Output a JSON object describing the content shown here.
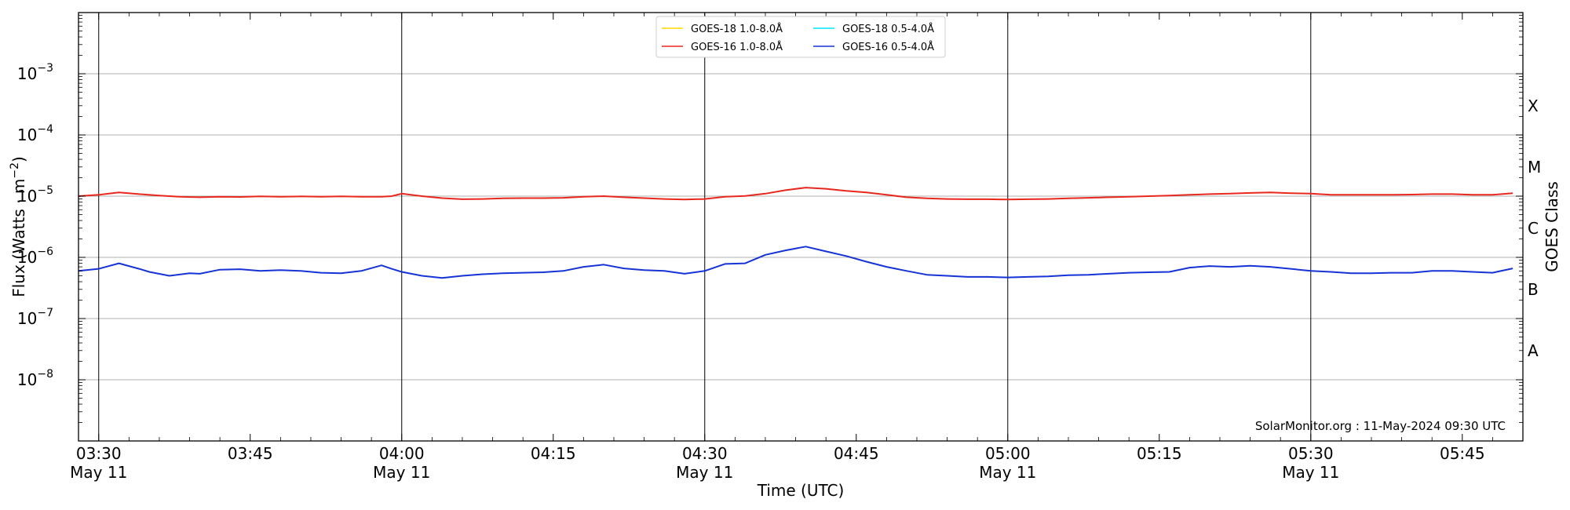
{
  "chart_data": {
    "type": "line",
    "xlabel": "Time (UTC)",
    "ylabel": "Flux (Watts · m",
    "ylabel_sup": "−2",
    "ylabel_close": ")",
    "y2label": "GOES Class",
    "ylog": true,
    "ylim": [
      1e-09,
      0.01
    ],
    "xlim": [
      "03:28",
      "05:51"
    ],
    "grid": "horizontal",
    "legend_position": "top-center",
    "y_ticks": [
      {
        "value": 1e-08,
        "base": "10",
        "exp": "−8"
      },
      {
        "value": 1e-07,
        "base": "10",
        "exp": "−7"
      },
      {
        "value": 1e-06,
        "base": "10",
        "exp": "−6"
      },
      {
        "value": 1e-05,
        "base": "10",
        "exp": "−5"
      },
      {
        "value": 0.0001,
        "base": "10",
        "exp": "−4"
      },
      {
        "value": 0.001,
        "base": "10",
        "exp": "−3"
      }
    ],
    "x_ticks": [
      {
        "time": "03:30",
        "label": "03:30",
        "date": "May 11",
        "vline": true
      },
      {
        "time": "03:45",
        "label": "03:45",
        "date": "",
        "vline": false
      },
      {
        "time": "04:00",
        "label": "04:00",
        "date": "May 11",
        "vline": true
      },
      {
        "time": "04:15",
        "label": "04:15",
        "date": "",
        "vline": false
      },
      {
        "time": "04:30",
        "label": "04:30",
        "date": "May 11",
        "vline": true
      },
      {
        "time": "04:45",
        "label": "04:45",
        "date": "",
        "vline": false
      },
      {
        "time": "05:00",
        "label": "05:00",
        "date": "May 11",
        "vline": true
      },
      {
        "time": "05:15",
        "label": "05:15",
        "date": "",
        "vline": false
      },
      {
        "time": "05:30",
        "label": "05:30",
        "date": "May 11",
        "vline": true
      },
      {
        "time": "05:45",
        "label": "05:45",
        "date": "",
        "vline": false
      }
    ],
    "goes_classes": [
      {
        "label": "A",
        "value": 3e-08
      },
      {
        "label": "B",
        "value": 3e-07
      },
      {
        "label": "C",
        "value": 3e-06
      },
      {
        "label": "M",
        "value": 3e-05
      },
      {
        "label": "X",
        "value": 0.0003
      }
    ],
    "series": [
      {
        "name": "GOES-18 1.0-8.0Å",
        "color": "#ffd700",
        "x": [],
        "y": []
      },
      {
        "name": "GOES-16 1.0-8.0Å",
        "color": "#e8281e",
        "x": [
          "03:28",
          "03:30",
          "03:32",
          "03:34",
          "03:36",
          "03:38",
          "03:40",
          "03:42",
          "03:44",
          "03:46",
          "03:48",
          "03:50",
          "03:52",
          "03:54",
          "03:56",
          "03:58",
          "03:59",
          "04:00",
          "04:02",
          "04:04",
          "04:06",
          "04:08",
          "04:10",
          "04:12",
          "04:14",
          "04:16",
          "04:18",
          "04:20",
          "04:22",
          "04:24",
          "04:26",
          "04:28",
          "04:30",
          "04:32",
          "04:34",
          "04:36",
          "04:38",
          "04:40",
          "04:42",
          "04:44",
          "04:46",
          "04:48",
          "04:50",
          "04:52",
          "04:54",
          "04:56",
          "04:58",
          "05:00",
          "05:02",
          "05:04",
          "05:06",
          "05:08",
          "05:10",
          "05:12",
          "05:14",
          "05:16",
          "05:18",
          "05:20",
          "05:22",
          "05:24",
          "05:26",
          "05:28",
          "05:30",
          "05:32",
          "05:34",
          "05:36",
          "05:38",
          "05:40",
          "05:42",
          "05:44",
          "05:46",
          "05:48",
          "05:50"
        ],
        "y": [
          1e-05,
          1.05e-05,
          1.15e-05,
          1.08e-05,
          1.02e-05,
          9.8e-06,
          9.6e-06,
          9.8e-06,
          9.7e-06,
          9.9e-06,
          9.8e-06,
          9.9e-06,
          9.8e-06,
          9.9e-06,
          9.8e-06,
          9.8e-06,
          1e-05,
          1.1e-05,
          1e-05,
          9.3e-06,
          8.9e-06,
          9e-06,
          9.2e-06,
          9.3e-06,
          9.3e-06,
          9.4e-06,
          9.8e-06,
          1e-05,
          9.6e-06,
          9.3e-06,
          9e-06,
          8.8e-06,
          9e-06,
          9.8e-06,
          1.01e-05,
          1.1e-05,
          1.25e-05,
          1.38e-05,
          1.32e-05,
          1.22e-05,
          1.15e-05,
          1.05e-05,
          9.6e-06,
          9.2e-06,
          9e-06,
          8.9e-06,
          8.9e-06,
          8.8e-06,
          8.9e-06,
          9e-06,
          9.2e-06,
          9.4e-06,
          9.6e-06,
          9.8e-06,
          1e-05,
          1.02e-05,
          1.05e-05,
          1.08e-05,
          1.1e-05,
          1.13e-05,
          1.15e-05,
          1.12e-05,
          1.1e-05,
          1.05e-05,
          1.05e-05,
          1.05e-05,
          1.05e-05,
          1.06e-05,
          1.08e-05,
          1.08e-05,
          1.05e-05,
          1.05e-05,
          1.12e-05
        ]
      },
      {
        "name": "GOES-18 0.5-4.0Å",
        "color": "#00e5ff",
        "x": [],
        "y": []
      },
      {
        "name": "GOES-16 0.5-4.0Å",
        "color": "#1633d6",
        "x": [
          "03:28",
          "03:30",
          "03:32",
          "03:34",
          "03:35",
          "03:37",
          "03:39",
          "03:40",
          "03:42",
          "03:44",
          "03:46",
          "03:48",
          "03:50",
          "03:52",
          "03:54",
          "03:56",
          "03:58",
          "03:59",
          "04:00",
          "04:02",
          "04:04",
          "04:06",
          "04:08",
          "04:10",
          "04:12",
          "04:14",
          "04:16",
          "04:18",
          "04:20",
          "04:22",
          "04:24",
          "04:26",
          "04:28",
          "04:30",
          "04:32",
          "04:34",
          "04:36",
          "04:38",
          "04:40",
          "04:42",
          "04:44",
          "04:46",
          "04:48",
          "04:50",
          "04:52",
          "04:54",
          "04:56",
          "04:58",
          "05:00",
          "05:02",
          "05:04",
          "05:06",
          "05:08",
          "05:10",
          "05:12",
          "05:14",
          "05:16",
          "05:18",
          "05:20",
          "05:22",
          "05:24",
          "05:26",
          "05:28",
          "05:30",
          "05:32",
          "05:34",
          "05:36",
          "05:38",
          "05:40",
          "05:42",
          "05:44",
          "05:46",
          "05:48",
          "05:50"
        ],
        "y": [
          6e-07,
          6.5e-07,
          8e-07,
          6.5e-07,
          5.8e-07,
          5e-07,
          5.5e-07,
          5.4e-07,
          6.3e-07,
          6.4e-07,
          6e-07,
          6.2e-07,
          6e-07,
          5.6e-07,
          5.5e-07,
          6e-07,
          7.4e-07,
          6.5e-07,
          5.8e-07,
          5e-07,
          4.6e-07,
          5e-07,
          5.3e-07,
          5.5e-07,
          5.6e-07,
          5.7e-07,
          6e-07,
          7e-07,
          7.6e-07,
          6.6e-07,
          6.2e-07,
          6e-07,
          5.4e-07,
          6e-07,
          7.8e-07,
          8e-07,
          1.1e-06,
          1.3e-06,
          1.5e-06,
          1.25e-06,
          1.05e-06,
          8.5e-07,
          7e-07,
          6e-07,
          5.2e-07,
          5e-07,
          4.8e-07,
          4.8e-07,
          4.7e-07,
          4.8e-07,
          4.9e-07,
          5.1e-07,
          5.2e-07,
          5.4e-07,
          5.6e-07,
          5.7e-07,
          5.8e-07,
          6.8e-07,
          7.2e-07,
          7e-07,
          7.3e-07,
          7e-07,
          6.5e-07,
          6e-07,
          5.8e-07,
          5.5e-07,
          5.5e-07,
          5.6e-07,
          5.6e-07,
          6e-07,
          6e-07,
          5.8e-07,
          5.6e-07,
          6.6e-07
        ]
      }
    ],
    "annotation": "SolarMonitor.org : 11-May-2024 09:30 UTC"
  }
}
